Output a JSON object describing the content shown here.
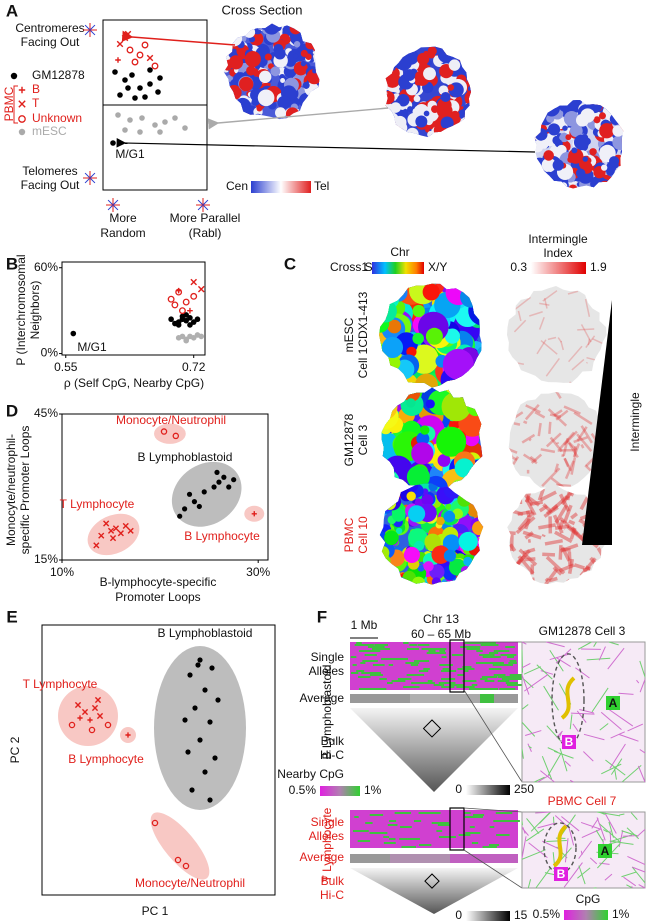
{
  "panel_a": {
    "label": "A",
    "cross_section": "Cross Section",
    "top": [
      "Centromeres",
      "Facing Out"
    ],
    "bottom": [
      "Telomeres",
      "Facing Out"
    ],
    "legend": {
      "gm12878": "GM12878",
      "pbmc": "PBMC",
      "b": "B",
      "t": "T",
      "unknown": "Unknown",
      "mesc": "mESC"
    },
    "mg1": "M/G1",
    "x_left": [
      "More",
      "Random"
    ],
    "x_right": [
      "More Parallel",
      "(Rabl)"
    ],
    "colorbar": [
      "Cen",
      "Tel"
    ]
  },
  "panel_b": {
    "label": "B",
    "mg1": "M/G1",
    "ylabel": [
      "P (Interchromosomal",
      "Neighbors)"
    ],
    "xlabel": "ρ (Self CpG, Nearby CpG)",
    "xlim": [
      0.545,
      0.735
    ],
    "ylim": [
      -1,
      64
    ],
    "xticks": [
      0.55,
      0.72
    ],
    "yticks": [
      {
        "value": 0,
        "label": "0%"
      },
      {
        "value": 60,
        "label": "60%"
      }
    ],
    "series": [
      {
        "marker": "dot",
        "color": "#000000",
        "x": [
          0.56,
          0.69,
          0.7,
          0.705,
          0.71,
          0.715,
          0.72,
          0.7,
          0.71,
          0.725,
          0.695,
          0.715,
          0.705
        ],
        "y": [
          14,
          24,
          22,
          26,
          23,
          25,
          22,
          20,
          27,
          24,
          21,
          20,
          24
        ]
      },
      {
        "marker": "dot",
        "color": "#b0b0b0",
        "x": [
          0.7,
          0.705,
          0.71,
          0.715,
          0.72,
          0.725,
          0.73,
          0.71
        ],
        "y": [
          11,
          12,
          10,
          12,
          11,
          13,
          12,
          9
        ]
      },
      {
        "marker": "circle",
        "color": "#e0201c",
        "x": [
          0.69,
          0.7,
          0.71,
          0.72,
          0.705,
          0.695
        ],
        "y": [
          38,
          43,
          36,
          40,
          30,
          34
        ]
      },
      {
        "marker": "plus",
        "color": "#e0201c",
        "x": [
          0.7,
          0.715
        ],
        "y": [
          44,
          30
        ]
      },
      {
        "marker": "cross",
        "color": "#e0201c",
        "x": [
          0.72,
          0.73
        ],
        "y": [
          50,
          45
        ]
      }
    ]
  },
  "panel_c": {
    "label": "C",
    "cross_section": "Cross Section",
    "chr": "Chr",
    "chr_range": [
      "1",
      "X/Y"
    ],
    "index_title": [
      "Intermingle",
      "Index"
    ],
    "index_range": [
      "0.3",
      "1.9"
    ],
    "rows": [
      [
        "mESC",
        "Cell 1CDX1-413"
      ],
      [
        "GM12878",
        "Cell 3"
      ],
      [
        "PBMC",
        "Cell 10"
      ]
    ],
    "trend": "Intermingle"
  },
  "panel_d": {
    "label": "D",
    "xlim": [
      10,
      31
    ],
    "ylim": [
      15,
      45
    ],
    "xticks": [
      {
        "value": 10,
        "label": "10%"
      },
      {
        "value": 30,
        "label": "30%"
      }
    ],
    "yticks": [
      {
        "value": 15,
        "label": "15%"
      },
      {
        "value": 45,
        "label": "45%"
      }
    ],
    "xlabel": [
      "B-lymphocyte-specific",
      "Promoter Loops"
    ],
    "ylabel": [
      "Monocyte/neutrophil-",
      "specific Promoter Loops"
    ],
    "series": [
      {
        "name": "Monocyte/Neutrophil",
        "marker": "circle",
        "color": "#e0201c",
        "x": [
          20.4,
          21.6
        ],
        "y": [
          41.4,
          40.5
        ]
      },
      {
        "name": "B Lymphoblastoid",
        "marker": "dot",
        "color": "#000000",
        "x": [
          22,
          22.5,
          23.5,
          24.5,
          25.5,
          26,
          26.5,
          27,
          27.5,
          23,
          24,
          25.8
        ],
        "y": [
          24,
          25.5,
          27,
          29,
          30,
          31,
          32,
          30,
          31.5,
          28.5,
          26,
          33
        ]
      },
      {
        "name": "T Lymphocyte",
        "marker": "cross",
        "color": "#e0201c",
        "x": [
          13.5,
          14,
          15,
          15.5,
          16,
          16.5,
          17,
          14.5,
          15.2
        ],
        "y": [
          18,
          20,
          21,
          21.5,
          20.5,
          22,
          21,
          22.5,
          19.5
        ]
      },
      {
        "name": "B Lymphocyte",
        "marker": "plus",
        "color": "#e0201c",
        "x": [
          29.6
        ],
        "y": [
          24.5
        ]
      }
    ]
  },
  "panel_e": {
    "label": "E",
    "xlabel": "PC 1",
    "ylabel": "PC 2",
    "groups": [
      "B Lymphoblastoid",
      "T Lymphocyte",
      "B Lymphocyte",
      "Monocyte/Neutrophil"
    ]
  },
  "panel_f": {
    "label": "F",
    "scale": "1 Mb",
    "chr": "Chr 13",
    "range": "60 – 65 Mb",
    "top": {
      "group": "B Lymphoblastoid",
      "single": [
        "Single",
        "Alleles"
      ],
      "average": "Average",
      "bulk": [
        "Bulk",
        "Hi-C"
      ],
      "range": [
        "0",
        "250"
      ],
      "cell": "GM12878 Cell 3"
    },
    "cpg": {
      "title": "Nearby CpG",
      "range": [
        "0.5%",
        "1%"
      ]
    },
    "bottom": {
      "group": "T Lymphocyte",
      "single": [
        "Single",
        "Alleles"
      ],
      "average": "Average",
      "bulk": [
        "Bulk",
        "Hi-C"
      ],
      "range": [
        "0",
        "15"
      ],
      "cell": "PBMC Cell 7"
    },
    "cpg2": {
      "title": "CpG",
      "range": [
        "0.5%",
        "1%"
      ]
    },
    "regions": [
      "B",
      "A"
    ]
  }
}
